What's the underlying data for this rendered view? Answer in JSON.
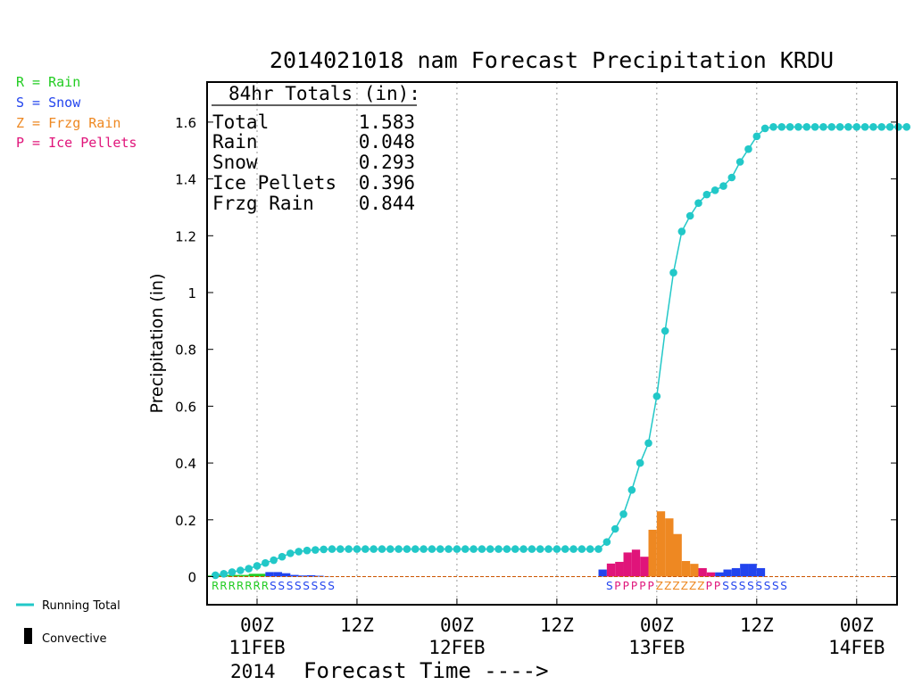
{
  "chart_data": {
    "type": "line",
    "title": "2014021018 nam Forecast Precipitation KRDU",
    "ylabel": "Precipitation (in)",
    "xlabel": "Forecast Time ---->",
    "year_label": "2014",
    "ylim": [
      -0.1,
      1.74
    ],
    "y_ticks": [
      0,
      0.2,
      0.4,
      0.6,
      0.8,
      1,
      1.2,
      1.4,
      1.6
    ],
    "y_tick_labels": [
      "0",
      "0.2",
      "0.4",
      "0.6",
      "0.8",
      "1",
      "1.2",
      "1.4",
      "1.6"
    ],
    "x_ticks": [
      {
        "t": 6,
        "hour": "00Z",
        "date": "11FEB"
      },
      {
        "t": 18,
        "hour": "12Z",
        "date": ""
      },
      {
        "t": 30,
        "hour": "00Z",
        "date": "12FEB"
      },
      {
        "t": 42,
        "hour": "12Z",
        "date": ""
      },
      {
        "t": 54,
        "hour": "00Z",
        "date": "13FEB"
      },
      {
        "t": 66,
        "hour": "12Z",
        "date": ""
      },
      {
        "t": 78,
        "hour": "00Z",
        "date": "14FEB"
      }
    ],
    "xlim": [
      0,
      84
    ],
    "grid": true,
    "totals_box": {
      "header": "84hr Totals (in):",
      "rows": [
        {
          "label": "Total",
          "value": "1.583"
        },
        {
          "label": "Rain",
          "value": "0.048"
        },
        {
          "label": "Snow",
          "value": "0.293"
        },
        {
          "label": "Ice Pellets",
          "value": "0.396"
        },
        {
          "label": "Frzg Rain",
          "value": "0.844"
        }
      ]
    },
    "legend_types": [
      {
        "text": "R = Rain",
        "color": "#22cc22"
      },
      {
        "text": "S = Snow",
        "color": "#2244ee"
      },
      {
        "text": "Z = Frzg Rain",
        "color": "#ee8822"
      },
      {
        "text": "P = Ice Pellets",
        "color": "#e0147a"
      }
    ],
    "legend_bottom": {
      "running_total": "Running Total",
      "convective": "Convective",
      "running_color": "#22c8c8"
    },
    "series": [
      {
        "name": "Running Total",
        "color": "#22c8c8",
        "x": [
          1,
          2,
          3,
          4,
          5,
          6,
          7,
          8,
          9,
          10,
          11,
          12,
          13,
          14,
          15,
          16,
          17,
          18,
          19,
          20,
          21,
          22,
          23,
          24,
          25,
          26,
          27,
          28,
          29,
          30,
          31,
          32,
          33,
          34,
          35,
          36,
          37,
          38,
          39,
          40,
          41,
          42,
          43,
          44,
          45,
          46,
          47,
          48,
          49,
          50,
          51,
          52,
          53,
          54,
          55,
          56,
          57,
          58,
          59,
          60,
          61,
          62,
          63,
          64,
          65,
          66,
          67,
          68,
          69,
          70,
          71,
          72,
          73,
          74,
          75,
          76,
          77,
          78,
          79,
          80,
          81,
          82,
          83,
          84
        ],
        "values": [
          0.005,
          0.01,
          0.016,
          0.022,
          0.028,
          0.038,
          0.048,
          0.058,
          0.07,
          0.082,
          0.088,
          0.092,
          0.094,
          0.096,
          0.097,
          0.097,
          0.097,
          0.097,
          0.097,
          0.097,
          0.097,
          0.097,
          0.097,
          0.097,
          0.097,
          0.097,
          0.097,
          0.097,
          0.097,
          0.097,
          0.097,
          0.097,
          0.097,
          0.097,
          0.097,
          0.097,
          0.097,
          0.097,
          0.097,
          0.097,
          0.097,
          0.097,
          0.097,
          0.097,
          0.097,
          0.097,
          0.097,
          0.122,
          0.168,
          0.22,
          0.305,
          0.4,
          0.47,
          0.635,
          0.865,
          1.07,
          1.215,
          1.27,
          1.315,
          1.345,
          1.36,
          1.375,
          1.405,
          1.46,
          1.505,
          1.55,
          1.578,
          1.583,
          1.583,
          1.583,
          1.583,
          1.583,
          1.583,
          1.583,
          1.583,
          1.583,
          1.583,
          1.583,
          1.583,
          1.583,
          1.583,
          1.583,
          1.583,
          1.583
        ]
      }
    ],
    "bars": [
      {
        "x": 1,
        "value": 0.004,
        "type": "R"
      },
      {
        "x": 2,
        "value": 0.005,
        "type": "R"
      },
      {
        "x": 3,
        "value": 0.006,
        "type": "R"
      },
      {
        "x": 4,
        "value": 0.006,
        "type": "R"
      },
      {
        "x": 5,
        "value": 0.006,
        "type": "R"
      },
      {
        "x": 6,
        "value": 0.01,
        "type": "R"
      },
      {
        "x": 7,
        "value": 0.01,
        "type": "R"
      },
      {
        "x": 8,
        "value": 0.016,
        "type": "S"
      },
      {
        "x": 9,
        "value": 0.016,
        "type": "S"
      },
      {
        "x": 10,
        "value": 0.012,
        "type": "S"
      },
      {
        "x": 11,
        "value": 0.006,
        "type": "S"
      },
      {
        "x": 12,
        "value": 0.004,
        "type": "S"
      },
      {
        "x": 13,
        "value": 0.005,
        "type": "S"
      },
      {
        "x": 14,
        "value": 0.003,
        "type": "S"
      },
      {
        "x": 15,
        "value": 0.001,
        "type": "S"
      },
      {
        "x": 48,
        "value": 0.025,
        "type": "S"
      },
      {
        "x": 49,
        "value": 0.046,
        "type": "P"
      },
      {
        "x": 50,
        "value": 0.052,
        "type": "P"
      },
      {
        "x": 51,
        "value": 0.085,
        "type": "P"
      },
      {
        "x": 52,
        "value": 0.095,
        "type": "P"
      },
      {
        "x": 53,
        "value": 0.07,
        "type": "P"
      },
      {
        "x": 54,
        "value": 0.165,
        "type": "Z"
      },
      {
        "x": 55,
        "value": 0.23,
        "type": "Z"
      },
      {
        "x": 56,
        "value": 0.205,
        "type": "Z"
      },
      {
        "x": 57,
        "value": 0.15,
        "type": "Z"
      },
      {
        "x": 58,
        "value": 0.055,
        "type": "Z"
      },
      {
        "x": 59,
        "value": 0.045,
        "type": "Z"
      },
      {
        "x": 60,
        "value": 0.03,
        "type": "P"
      },
      {
        "x": 61,
        "value": 0.015,
        "type": "P"
      },
      {
        "x": 62,
        "value": 0.015,
        "type": "S"
      },
      {
        "x": 63,
        "value": 0.025,
        "type": "S"
      },
      {
        "x": 64,
        "value": 0.03,
        "type": "S"
      },
      {
        "x": 65,
        "value": 0.045,
        "type": "S"
      },
      {
        "x": 66,
        "value": 0.045,
        "type": "S"
      },
      {
        "x": 67,
        "value": 0.03,
        "type": "S"
      }
    ],
    "type_letters_left": "RRRRRRRSSSSSSSS",
    "type_letters_right": "SPPPPPZZZZZZPPSSSSSSSS",
    "type_colors": {
      "R": "#22cc22",
      "S": "#2244ee",
      "Z": "#ee8822",
      "P": "#e0147a"
    }
  }
}
